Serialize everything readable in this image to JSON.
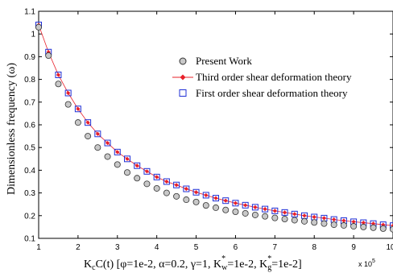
{
  "chart_data": {
    "type": "scatter",
    "xlabel_main": "K",
    "xlabel_sub": "c",
    "xlabel_rest": "C(t)  [φ=1e-2, α=0.2, γ=1, K",
    "xlabel_w_sup": "*",
    "xlabel_w_sub": "w",
    "xlabel_mid": "=1e-2, K",
    "xlabel_g_sup": "*",
    "xlabel_g_sub": "g",
    "xlabel_end": "=1e-2]",
    "ylabel": "Dimensionless frequency  (ω)",
    "x_multiplier": "x 10",
    "x_multiplier_exp": "5",
    "xlim": [
      1,
      10
    ],
    "ylim": [
      0.1,
      1.1
    ],
    "xticks": [
      "1",
      "2",
      "3",
      "4",
      "5",
      "6",
      "7",
      "8",
      "9",
      "10"
    ],
    "yticks": [
      "0.1",
      "0.2",
      "0.3",
      "0.4",
      "0.5",
      "0.6",
      "0.7",
      "0.8",
      "0.9",
      "1",
      "1.1"
    ],
    "x": [
      1,
      1.25,
      1.5,
      1.75,
      2,
      2.25,
      2.5,
      2.75,
      3,
      3.25,
      3.5,
      3.75,
      4,
      4.25,
      4.5,
      4.75,
      5,
      5.25,
      5.5,
      5.75,
      6,
      6.25,
      6.5,
      6.75,
      7,
      7.25,
      7.5,
      7.75,
      8,
      8.25,
      8.5,
      8.75,
      9,
      9.25,
      9.5,
      9.75,
      10
    ],
    "series": [
      {
        "name": "Present Work",
        "marker": "circle",
        "color": "#333333",
        "fill": "#c8c8c8",
        "values": [
          1.03,
          0.905,
          0.78,
          0.69,
          0.61,
          0.55,
          0.5,
          0.46,
          0.425,
          0.39,
          0.365,
          0.34,
          0.32,
          0.3,
          0.285,
          0.27,
          0.26,
          0.245,
          0.235,
          0.225,
          0.217,
          0.21,
          0.203,
          0.197,
          0.19,
          0.185,
          0.18,
          0.175,
          0.17,
          0.165,
          0.16,
          0.157,
          0.153,
          0.15,
          0.147,
          0.143,
          0.14
        ]
      },
      {
        "name": "Third order shear deformation theory",
        "marker": "diamond-line",
        "color": "#e8202a",
        "values": [
          1.04,
          0.92,
          0.82,
          0.74,
          0.67,
          0.61,
          0.56,
          0.52,
          0.48,
          0.45,
          0.42,
          0.395,
          0.37,
          0.35,
          0.335,
          0.318,
          0.303,
          0.29,
          0.277,
          0.266,
          0.255,
          0.246,
          0.237,
          0.229,
          0.221,
          0.214,
          0.207,
          0.2,
          0.194,
          0.189,
          0.183,
          0.178,
          0.173,
          0.169,
          0.165,
          0.16,
          0.156
        ]
      },
      {
        "name": "First order shear deformation theory",
        "marker": "square",
        "color": "#1f2fd6",
        "values": [
          1.04,
          0.92,
          0.82,
          0.74,
          0.67,
          0.61,
          0.56,
          0.52,
          0.48,
          0.45,
          0.42,
          0.395,
          0.37,
          0.35,
          0.335,
          0.318,
          0.303,
          0.29,
          0.277,
          0.266,
          0.255,
          0.246,
          0.237,
          0.229,
          0.221,
          0.214,
          0.207,
          0.2,
          0.194,
          0.189,
          0.183,
          0.178,
          0.173,
          0.169,
          0.165,
          0.16,
          0.156
        ]
      }
    ],
    "legend_position": "top-right",
    "grid": false
  }
}
